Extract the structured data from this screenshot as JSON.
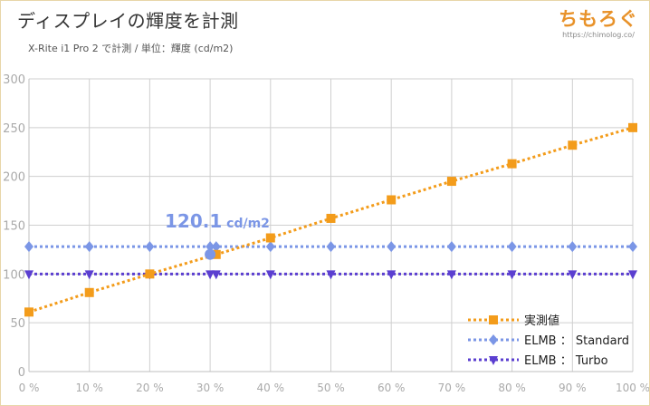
{
  "header": {
    "title": "ディスプレイの輝度を計測",
    "subtitle": "X-Rite i1 Pro 2 で計測 / 単位：輝度 (cd/m2)"
  },
  "logo": {
    "text": "ちもろぐ",
    "url": "https://chimolog.co/"
  },
  "chart_data": {
    "type": "line",
    "title": "ディスプレイの輝度を計測",
    "subtitle": "X-Rite i1 Pro 2 で計測 / 単位：輝度 (cd/m2)",
    "x": [
      0,
      10,
      20,
      30,
      31,
      40,
      50,
      60,
      70,
      80,
      90,
      100
    ],
    "x_tick_values": [
      0,
      10,
      20,
      30,
      40,
      50,
      60,
      70,
      80,
      90,
      100
    ],
    "x_tick_labels": [
      "0 %",
      "10 %",
      "20 %",
      "30 %",
      "40 %",
      "50 %",
      "60 %",
      "70 %",
      "80 %",
      "90 %",
      "100 %"
    ],
    "xlim": [
      0,
      100
    ],
    "ylim": [
      0,
      300
    ],
    "y_ticks": [
      0,
      50,
      100,
      150,
      200,
      250,
      300
    ],
    "grid": true,
    "legend_position": "bottom-right",
    "series": [
      {
        "name": "実測値",
        "color": "#f39c1b",
        "marker": "square",
        "x": [
          0,
          10,
          20,
          31,
          40,
          50,
          60,
          70,
          80,
          90,
          100
        ],
        "y": [
          61,
          81,
          100,
          120,
          137,
          157,
          176,
          195,
          213,
          232,
          250
        ]
      },
      {
        "name": "ELMB ： Standard",
        "color": "#7b96e6",
        "marker": "diamond",
        "x": [
          0,
          10,
          20,
          30,
          31,
          40,
          50,
          60,
          70,
          80,
          90,
          100
        ],
        "y": [
          128,
          128,
          128,
          128,
          128,
          128,
          128,
          128,
          128,
          128,
          128,
          128
        ]
      },
      {
        "name": "ELMB ： Turbo",
        "color": "#5b3fd0",
        "marker": "triangle-down",
        "x": [
          0,
          10,
          20,
          30,
          31,
          40,
          50,
          60,
          70,
          80,
          90,
          100
        ],
        "y": [
          100,
          100,
          100,
          100,
          100,
          100,
          100,
          100,
          100,
          100,
          100,
          100
        ]
      }
    ],
    "annotations": [
      {
        "value_text": "120.1",
        "unit_text": " cd/m2",
        "x": 30,
        "y": 120.1,
        "color": "#7b96e6"
      }
    ]
  }
}
